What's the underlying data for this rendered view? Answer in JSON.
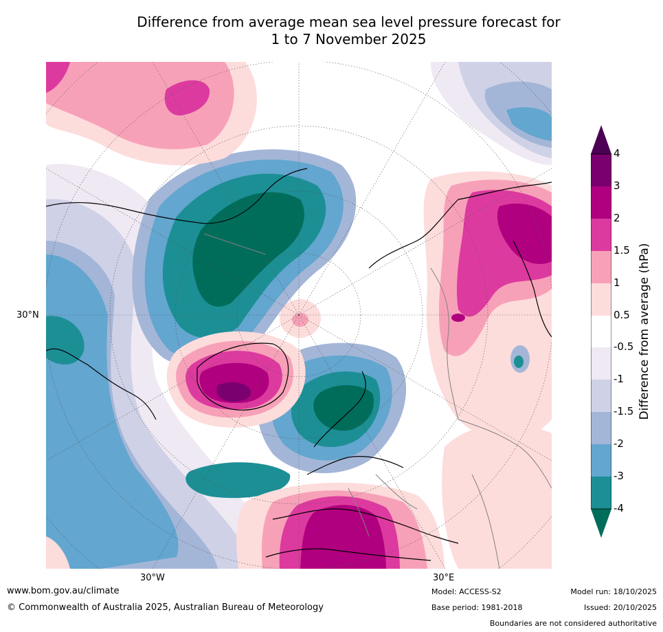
{
  "title": {
    "line1": "Difference from average mean sea level pressure forecast for",
    "line2": "1 to 7 November 2025"
  },
  "map": {
    "projection": "polar-stereographic-north",
    "lat_labels": [
      "30°N"
    ],
    "lon_labels": [
      "30°W",
      "30°E"
    ]
  },
  "colorbar": {
    "title": "Difference from average (hPa)",
    "levels": [
      "4",
      "3",
      "2",
      "1.5",
      "1",
      "0.5",
      "-0.5",
      "-1",
      "-1.5",
      "-2",
      "-3",
      "-4"
    ],
    "colors": {
      "above_4": "#4b0055",
      "3_to_4": "#7a0070",
      "2_to_3": "#b0007f",
      "1.5_to_2": "#dd3a9f",
      "1_to_1.5": "#f7a1b8",
      "0.5_to_1": "#fddcdc",
      "neutral": "#ffffff",
      "-1_to_-0.5": "#efe9f3",
      "-1.5_to_-1": "#cfd1e6",
      "-2_to_-1.5": "#a4b6d7",
      "-3_to_-2": "#63a6cf",
      "-4_to_-3": "#1c8f95",
      "below_-4": "#006d5b"
    }
  },
  "footer": {
    "url": "www.bom.gov.au/climate",
    "copyright": "© Commonwealth of Australia 2025, Australian Bureau of Meteorology",
    "model": "Model: ACCESS-S2",
    "base_period": "Base period: 1981-2018",
    "model_run": "Model run: 18/10/2025",
    "issued": "Issued: 20/10/2025",
    "disclaimer": "Boundaries are not considered authoritative"
  }
}
